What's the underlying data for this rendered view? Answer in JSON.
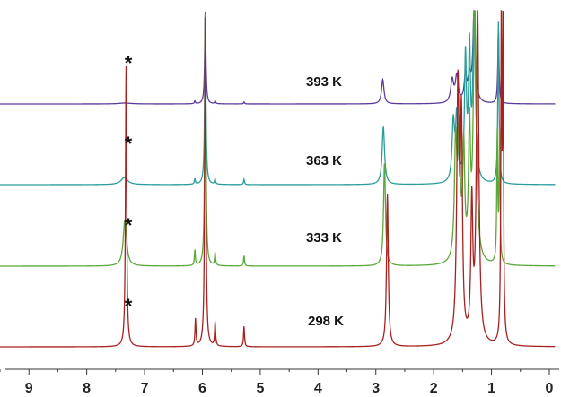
{
  "chart_data": {
    "type": "line",
    "xlabel": "",
    "ylabel": "",
    "x_axis": {
      "range": [
        9.5,
        0
      ],
      "ticks": [
        9,
        8,
        7,
        6,
        5,
        4,
        3,
        2,
        1,
        0
      ],
      "tick_labels": [
        "9",
        "8",
        "7",
        "6",
        "5",
        "4",
        "3",
        "2",
        "1",
        "0"
      ],
      "reversed": true
    },
    "grid": false,
    "series": [
      {
        "name": "393 K",
        "color": "#5b3b9c",
        "marker": "*",
        "peaks": [
          {
            "x": 7.34,
            "height": 0.01,
            "width": 0.12
          },
          {
            "x": 6.13,
            "height": 0.03,
            "width": 0.01
          },
          {
            "x": 5.95,
            "height": 1.0,
            "width": 0.012
          },
          {
            "x": 5.78,
            "height": 0.03,
            "width": 0.01
          },
          {
            "x": 5.28,
            "height": 0.02,
            "width": 0.01
          },
          {
            "x": 2.88,
            "height": 0.26,
            "width": 0.025
          },
          {
            "x": 1.68,
            "height": 0.24,
            "width": 0.03
          },
          {
            "x": 1.6,
            "height": 0.28,
            "width": 0.03
          },
          {
            "x": 1.45,
            "height": 0.27,
            "width": 0.025
          },
          {
            "x": 1.38,
            "height": 0.25,
            "width": 0.03
          },
          {
            "x": 1.3,
            "height": 1.0,
            "width": 0.025
          },
          {
            "x": 0.88,
            "height": 0.8,
            "width": 0.012
          }
        ]
      },
      {
        "name": "363 K",
        "color": "#2a9d9a",
        "marker": "*",
        "peaks": [
          {
            "x": 7.35,
            "height": 0.04,
            "width": 0.07
          },
          {
            "x": 6.13,
            "height": 0.03,
            "width": 0.01
          },
          {
            "x": 5.95,
            "height": 1.0,
            "width": 0.012
          },
          {
            "x": 5.78,
            "height": 0.03,
            "width": 0.01
          },
          {
            "x": 5.28,
            "height": 0.03,
            "width": 0.01
          },
          {
            "x": 2.87,
            "height": 0.33,
            "width": 0.025
          },
          {
            "x": 1.66,
            "height": 0.33,
            "width": 0.025
          },
          {
            "x": 1.6,
            "height": 0.37,
            "width": 0.025
          },
          {
            "x": 1.45,
            "height": 0.7,
            "width": 0.02
          },
          {
            "x": 1.38,
            "height": 0.72,
            "width": 0.02
          },
          {
            "x": 1.3,
            "height": 1.0,
            "width": 0.025
          },
          {
            "x": 0.88,
            "height": 0.93,
            "width": 0.012
          }
        ]
      },
      {
        "name": "333 K",
        "color": "#5aa83a",
        "marker": "*",
        "peaks": [
          {
            "x": 7.34,
            "height": 0.18,
            "width": 0.035
          },
          {
            "x": 6.13,
            "height": 0.06,
            "width": 0.01
          },
          {
            "x": 5.95,
            "height": 1.0,
            "width": 0.012
          },
          {
            "x": 5.78,
            "height": 0.05,
            "width": 0.01
          },
          {
            "x": 5.28,
            "height": 0.04,
            "width": 0.01
          },
          {
            "x": 2.85,
            "height": 0.4,
            "width": 0.02
          },
          {
            "x": 1.62,
            "height": 0.45,
            "width": 0.025
          },
          {
            "x": 1.56,
            "height": 0.48,
            "width": 0.025
          },
          {
            "x": 1.48,
            "height": 0.42,
            "width": 0.02
          },
          {
            "x": 1.38,
            "height": 0.49,
            "width": 0.02
          },
          {
            "x": 1.29,
            "height": 1.0,
            "width": 0.03
          },
          {
            "x": 0.9,
            "height": 0.5,
            "width": 0.01
          },
          {
            "x": 0.86,
            "height": 0.5,
            "width": 0.01
          }
        ]
      },
      {
        "name": "298 K",
        "color": "#a8201f",
        "marker": "*",
        "peaks": [
          {
            "x": 7.32,
            "height": 0.83,
            "width": 0.012
          },
          {
            "x": 6.12,
            "height": 0.08,
            "width": 0.01
          },
          {
            "x": 5.95,
            "height": 1.0,
            "width": 0.012
          },
          {
            "x": 5.78,
            "height": 0.07,
            "width": 0.01
          },
          {
            "x": 5.28,
            "height": 0.06,
            "width": 0.01
          },
          {
            "x": 2.8,
            "height": 0.45,
            "width": 0.018
          },
          {
            "x": 1.58,
            "height": 0.75,
            "width": 0.025
          },
          {
            "x": 1.52,
            "height": 0.62,
            "width": 0.02
          },
          {
            "x": 1.34,
            "height": 0.4,
            "width": 0.02
          },
          {
            "x": 1.24,
            "height": 1.0,
            "width": 0.025
          },
          {
            "x": 0.83,
            "height": 0.95,
            "width": 0.01
          },
          {
            "x": 0.8,
            "height": 0.9,
            "width": 0.01
          }
        ]
      }
    ]
  }
}
